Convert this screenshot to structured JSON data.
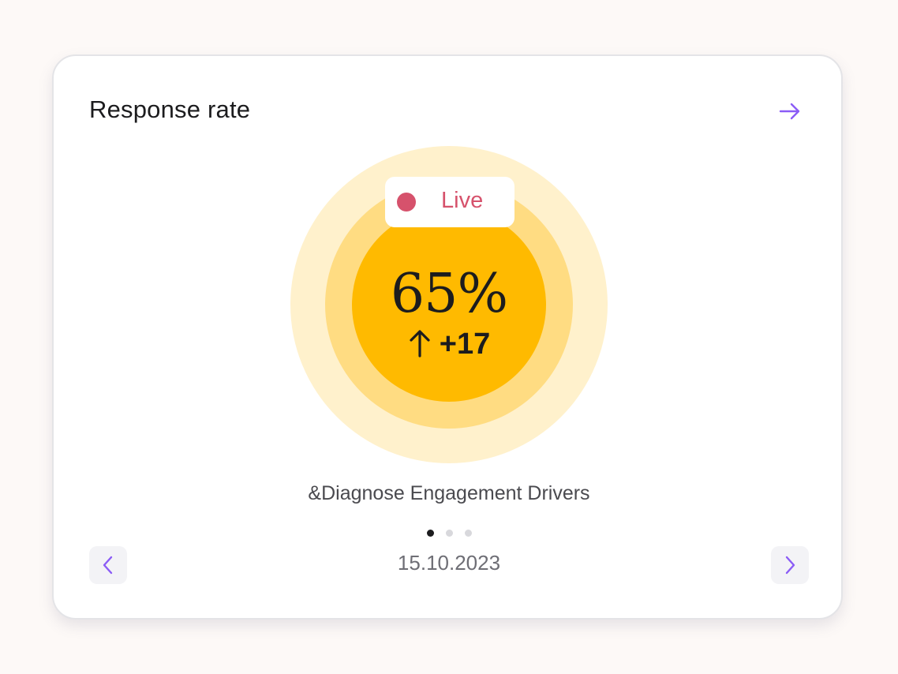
{
  "card": {
    "title": "Response rate",
    "open_icon": "arrow-right-icon"
  },
  "status": {
    "live_label": "Live",
    "live_color": "#d6526c"
  },
  "metric": {
    "value": "65%",
    "delta": "+17",
    "delta_icon": "arrow-up-icon",
    "ring_colors": [
      "#fff1cc",
      "#ffdc82",
      "#ffba00"
    ]
  },
  "subtitle": "&Diagnose Engagement Drivers",
  "pagination": {
    "total": 3,
    "active_index": 0
  },
  "navigation": {
    "date": "15.10.2023",
    "prev_icon": "chevron-left-icon",
    "next_icon": "chevron-right-icon",
    "accent_color": "#8b5cf6"
  }
}
